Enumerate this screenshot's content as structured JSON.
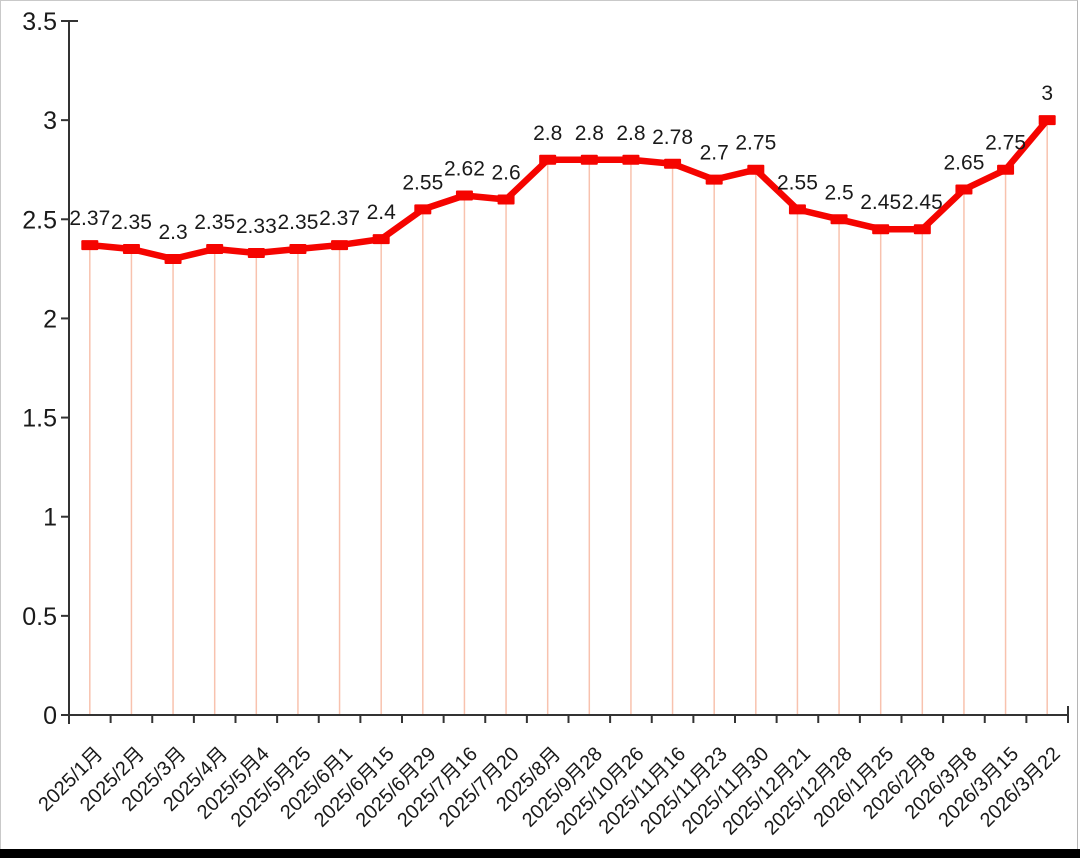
{
  "chart_data": {
    "type": "line",
    "title": "",
    "xlabel": "",
    "ylabel": "",
    "categories": [
      "2025/1月",
      "2025/2月",
      "2025/3月",
      "2025/4月",
      "2025/5月4",
      "2025/5月25",
      "2025/6月1",
      "2025/6月15",
      "2025/6月29",
      "2025/7月16",
      "2025/7月20",
      "2025/8月",
      "2025/9月28",
      "2025/10月26",
      "2025/11月16",
      "2025/11月23",
      "2025/11月30",
      "2025/12月21",
      "2025/12月28",
      "2026/1月25",
      "2026/2月8",
      "2026/3月8",
      "2026/3月15",
      "2026/3月22"
    ],
    "values": [
      2.37,
      2.35,
      2.3,
      2.35,
      2.33,
      2.35,
      2.37,
      2.4,
      2.55,
      2.62,
      2.6,
      2.8,
      2.8,
      2.8,
      2.78,
      2.7,
      2.75,
      2.55,
      2.5,
      2.45,
      2.45,
      2.65,
      2.75,
      3
    ],
    "point_labels": [
      "2.37",
      "2.35",
      "2.3",
      "2.35",
      "2.33",
      "2.35",
      "2.37",
      "2.4",
      "2.55",
      "2.62",
      "2.6",
      "2.8",
      "2.8",
      "2.8",
      "2.78",
      "2.7",
      "2.75",
      "2.55",
      "2.5",
      "2.45",
      "2.45",
      "2.65",
      "2.75",
      "3"
    ],
    "y_tick_labels": [
      "0",
      "0.5",
      "1",
      "1.5",
      "2",
      "2.5",
      "3",
      "3.5"
    ],
    "y_tick_values": [
      0,
      0.5,
      1,
      1.5,
      2,
      2.5,
      3,
      3.5
    ],
    "ylim": [
      0,
      3.5
    ],
    "grid": "off",
    "legend": "none",
    "drop_lines": true,
    "marker": "square",
    "colors": {
      "line": "#f50400",
      "marker": "#f50400",
      "drop_line": "#f8c2ae",
      "label_text": "#1a1a1a",
      "tick_text": "#1a1a1a",
      "axis": "#333333",
      "background": "#ffffff",
      "bottom_bar": "#000000"
    }
  }
}
